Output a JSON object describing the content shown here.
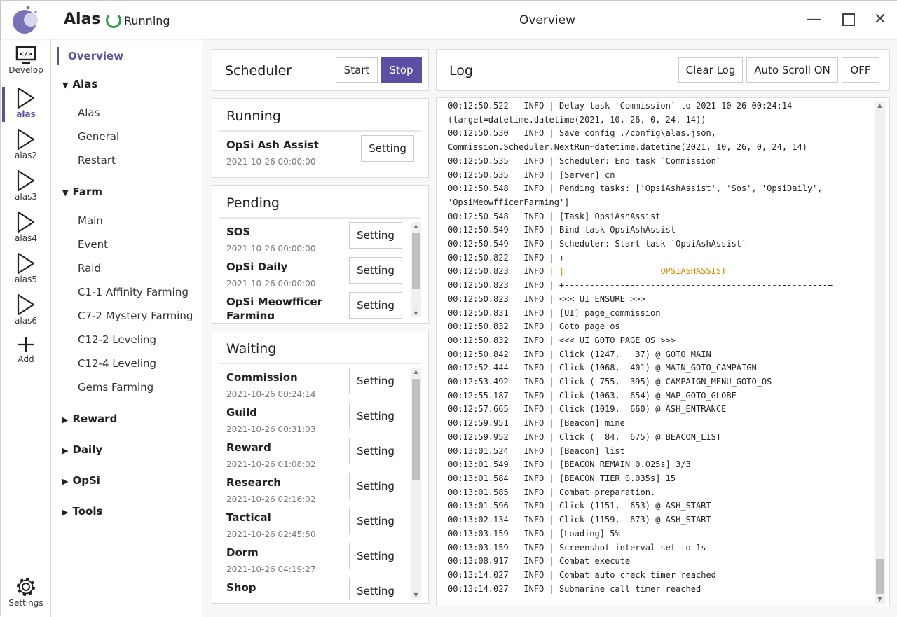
{
  "app": {
    "name": "Alas",
    "status": "Running",
    "window_title": "Overview",
    "accent": "#5a4fa2",
    "status_color": "#2ea043"
  },
  "rail": [
    {
      "label": "Develop",
      "icon": "monitor-code-icon"
    },
    {
      "label": "alas",
      "icon": "play-icon",
      "active": true
    },
    {
      "label": "alas2",
      "icon": "play-icon"
    },
    {
      "label": "alas3",
      "icon": "play-icon"
    },
    {
      "label": "alas4",
      "icon": "play-icon"
    },
    {
      "label": "alas5",
      "icon": "play-icon"
    },
    {
      "label": "alas6",
      "icon": "play-icon"
    },
    {
      "label": "Add",
      "icon": "plus-icon"
    }
  ],
  "settings_label": "Settings",
  "nav": {
    "overview": "Overview",
    "groups": [
      {
        "label": "Alas",
        "expanded": true,
        "items": [
          "Alas",
          "General",
          "Restart"
        ]
      },
      {
        "label": "Farm",
        "expanded": true,
        "items": [
          "Main",
          "Event",
          "Raid",
          "C1-1 Affinity Farming",
          "C7-2 Mystery Farming",
          "C12-2 Leveling",
          "C12-4 Leveling",
          "Gems Farming"
        ]
      },
      {
        "label": "Reward",
        "expanded": false,
        "items": []
      },
      {
        "label": "Daily",
        "expanded": false,
        "items": []
      },
      {
        "label": "OpSi",
        "expanded": false,
        "items": []
      },
      {
        "label": "Tools",
        "expanded": false,
        "items": []
      }
    ]
  },
  "scheduler": {
    "title": "Scheduler",
    "start": "Start",
    "stop": "Stop"
  },
  "setting_label": "Setting",
  "running": {
    "title": "Running",
    "tasks": [
      {
        "name": "OpSi Ash Assist",
        "time": "2021-10-26 00:00:00"
      }
    ]
  },
  "pending": {
    "title": "Pending",
    "tasks": [
      {
        "name": "SOS",
        "time": "2021-10-26 00:00:00"
      },
      {
        "name": "OpSi Daily",
        "time": "2021-10-26 00:00:00"
      },
      {
        "name": "OpSi Meowfficer Farming",
        "time": ""
      }
    ]
  },
  "waiting": {
    "title": "Waiting",
    "tasks": [
      {
        "name": "Commission",
        "time": "2021-10-26 00:24:14"
      },
      {
        "name": "Guild",
        "time": "2021-10-26 00:31:03"
      },
      {
        "name": "Reward",
        "time": "2021-10-26 01:08:02"
      },
      {
        "name": "Research",
        "time": "2021-10-26 02:16:02"
      },
      {
        "name": "Tactical",
        "time": "2021-10-26 02:45:50"
      },
      {
        "name": "Dorm",
        "time": "2021-10-26 04:19:27"
      },
      {
        "name": "Shop",
        "time": ""
      }
    ]
  },
  "log": {
    "title": "Log",
    "clear": "Clear Log",
    "autoscroll": "Auto Scroll ON",
    "off": "OFF",
    "lines": [
      "00:12:50.522 | INFO | Delay task `Commission` to 2021-10-26 00:24:14",
      "(target=datetime.datetime(2021, 10, 26, 0, 24, 14))",
      "00:12:50.530 | INFO | Save config ./config\\alas.json,",
      "Commission.Scheduler.NextRun=datetime.datetime(2021, 10, 26, 0, 24, 14)",
      "00:12:50.535 | INFO | Scheduler: End task `Commission`",
      "00:12:50.535 | INFO | [Server] cn",
      "00:12:50.548 | INFO | Pending tasks: ['OpsiAshAssist', 'Sos', 'OpsiDaily',",
      "'OpsiMeowfficerFarming']",
      "00:12:50.548 | INFO | [Task] OpsiAshAssist",
      "00:12:50.549 | INFO | Bind task OpsiAshAssist",
      "00:12:50.549 | INFO | Scheduler: Start task `OpsiAshAssist`",
      "00:12:50.822 | INFO | +----------------------------------------------------+",
      "00:12:50.823 | INFO | |                   OPSIASHASSIST                    |",
      "00:12:50.823 | INFO | +----------------------------------------------------+",
      "00:12:50.823 | INFO | <<< UI ENSURE >>>",
      "00:12:50.831 | INFO | [UI] page_commission",
      "00:12:50.832 | INFO | Goto page_os",
      "00:12:50.832 | INFO | <<< UI GOTO PAGE_OS >>>",
      "00:12:50.842 | INFO | Click (1247,   37) @ GOTO_MAIN",
      "00:12:52.444 | INFO | Click (1068,  401) @ MAIN_GOTO_CAMPAIGN",
      "00:12:53.492 | INFO | Click ( 755,  395) @ CAMPAIGN_MENU_GOTO_OS",
      "00:12:55.187 | INFO | Click (1063,  654) @ MAP_GOTO_GLOBE",
      "00:12:57.665 | INFO | Click (1019,  660) @ ASH_ENTRANCE",
      "00:12:59.951 | INFO | [Beacon] mine",
      "00:12:59.952 | INFO | Click (  84,  675) @ BEACON_LIST",
      "00:13:01.524 | INFO | [Beacon] list",
      "00:13:01.549 | INFO | [BEACON_REMAIN 0.025s] 3/3",
      "00:13:01.584 | INFO | [BEACON_TIER 0.035s] 15",
      "00:13:01.585 | INFO | Combat preparation.",
      "00:13:01.596 | INFO | Click (1151,  653) @ ASH_START",
      "00:13:02.134 | INFO | Click (1159,  673) @ ASH_START",
      "00:13:03.159 | INFO | [Loading] 5%",
      "00:13:03.159 | INFO | Screenshot interval set to 1s",
      "00:13:08.917 | INFO | Combat execute",
      "00:13:14.027 | INFO | Combat auto check timer reached",
      "00:13:14.027 | INFO | Submarine call timer reached"
    ]
  }
}
